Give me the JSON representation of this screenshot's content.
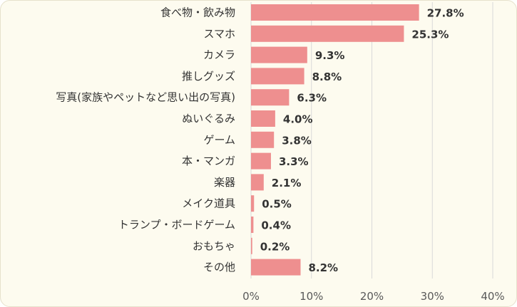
{
  "chart_data": {
    "type": "bar",
    "orientation": "horizontal",
    "categories": [
      "食べ物・飲み物",
      "スマホ",
      "カメラ",
      "推しグッズ",
      "写真(家族やペットなど思い出の写真)",
      "ぬいぐるみ",
      "ゲーム",
      "本・マンガ",
      "楽器",
      "メイク道具",
      "トランプ・ボードゲーム",
      "おもちゃ",
      "その他"
    ],
    "values": [
      27.8,
      25.3,
      9.3,
      8.8,
      6.3,
      4.0,
      3.8,
      3.3,
      2.1,
      0.5,
      0.4,
      0.2,
      8.2
    ],
    "value_labels": [
      "27.8%",
      "25.3%",
      "9.3%",
      "8.8%",
      "6.3%",
      "4.0%",
      "3.8%",
      "3.3%",
      "2.1%",
      "0.5%",
      "0.4%",
      "0.2%",
      "8.2%"
    ],
    "x_ticks": [
      "0%",
      "10%",
      "20%",
      "30%",
      "40%"
    ],
    "xlim": [
      0,
      40
    ],
    "title": "",
    "xlabel": "",
    "ylabel": "",
    "grid": true,
    "colors": {
      "bar": "#ee8f8f",
      "background": "#fdfbef",
      "grid": "#d9d9d9",
      "text": "#333333"
    }
  }
}
